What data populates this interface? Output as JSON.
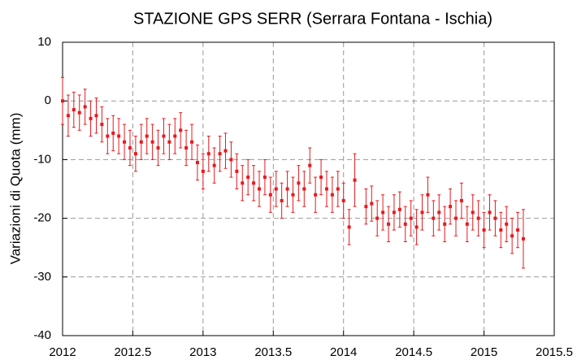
{
  "chart_data": {
    "type": "errorbar",
    "title": "STAZIONE GPS SERR (Serrara Fontana - Ischia)",
    "y_label": "Variazioni di Quota (mm)",
    "color": "#e8191e",
    "grid": true,
    "xlim": [
      2012,
      2015.5
    ],
    "xticks": [
      2012,
      2012.5,
      2013,
      2013.5,
      2014,
      2014.5,
      2015,
      2015.5
    ],
    "ylim": [
      -40,
      10
    ],
    "yticks": [
      10,
      0,
      -10,
      -20,
      -30,
      -40
    ],
    "x": [
      2012.0,
      2012.04,
      2012.08,
      2012.12,
      2012.16,
      2012.2,
      2012.24,
      2012.28,
      2012.32,
      2012.36,
      2012.4,
      2012.44,
      2012.48,
      2012.52,
      2012.56,
      2012.6,
      2012.64,
      2012.68,
      2012.72,
      2012.76,
      2012.8,
      2012.84,
      2012.88,
      2012.92,
      2012.96,
      2013.0,
      2013.04,
      2013.08,
      2013.12,
      2013.16,
      2013.2,
      2013.24,
      2013.28,
      2013.32,
      2013.36,
      2013.4,
      2013.44,
      2013.48,
      2013.52,
      2013.56,
      2013.6,
      2013.64,
      2013.68,
      2013.72,
      2013.76,
      2013.8,
      2013.84,
      2013.88,
      2013.92,
      2013.96,
      2014.0,
      2014.04,
      2014.08,
      2014.16,
      2014.2,
      2014.24,
      2014.28,
      2014.32,
      2014.36,
      2014.4,
      2014.44,
      2014.48,
      2014.52,
      2014.56,
      2014.6,
      2014.64,
      2014.68,
      2014.72,
      2014.76,
      2014.8,
      2014.84,
      2014.88,
      2014.92,
      2014.96,
      2015.0,
      2015.04,
      2015.08,
      2015.12,
      2015.16,
      2015.2,
      2015.24,
      2015.28
    ],
    "values": [
      0,
      -2.5,
      -1.5,
      -2,
      -1,
      -3,
      -2.5,
      -4,
      -6,
      -5.5,
      -6,
      -7,
      -8,
      -9,
      -7,
      -6,
      -7,
      -8,
      -6,
      -7,
      -6,
      -5,
      -8,
      -7,
      -10.5,
      -12,
      -9,
      -11,
      -9,
      -8.5,
      -10,
      -12,
      -14,
      -13,
      -14,
      -15,
      -13,
      -16,
      -15,
      -17,
      -15,
      -16,
      -14,
      -15,
      -11,
      -16,
      -13,
      -15,
      -16,
      -15,
      -17,
      -21.5,
      -13.5,
      -18,
      -17.5,
      -20,
      -19,
      -21,
      -19,
      -18.5,
      -21,
      -20,
      -21.5,
      -19,
      -16,
      -20,
      -19,
      -21,
      -18,
      -20,
      -17,
      -21,
      -19,
      -20,
      -22,
      -19,
      -20,
      -22,
      -21,
      -23,
      -22,
      -23.5
    ],
    "errors": [
      4,
      3.5,
      3,
      3,
      3,
      3,
      3,
      3,
      3,
      3,
      3,
      3,
      3,
      3,
      3,
      3,
      3,
      3,
      3,
      3,
      3,
      3,
      3,
      3,
      3,
      3,
      3,
      3,
      3,
      3,
      3,
      3,
      3,
      3,
      3,
      3,
      3,
      3,
      3,
      3,
      3,
      3,
      3,
      3,
      3,
      3,
      3,
      3,
      3,
      3,
      3,
      3,
      4.5,
      3,
      3,
      3,
      3,
      3,
      3,
      3,
      3,
      3,
      3,
      3,
      3,
      3,
      3,
      3,
      3,
      3,
      3,
      3,
      3,
      3,
      3,
      3,
      3,
      3,
      3,
      3,
      3,
      5
    ]
  }
}
